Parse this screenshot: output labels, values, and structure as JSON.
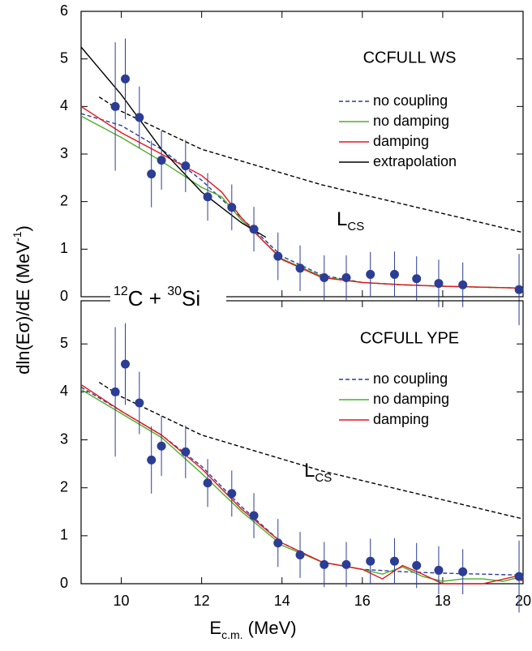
{
  "chart_data": [
    {
      "type": "line",
      "title": "CCFULL WS",
      "ylabel": {
        "main": "dln(Eσ)/dE (MeV",
        "sup": "-1",
        "end": ")"
      },
      "annotation": {
        "mass1": "12",
        "elem1": "C + ",
        "mass2": "30",
        "elem2": "Si"
      },
      "lcs": {
        "label": "L",
        "sub": "CS",
        "color": "#000000",
        "x": [
          9.45,
          10,
          11,
          12,
          13,
          14,
          15,
          16,
          17,
          18,
          19,
          20
        ],
        "values": [
          4.2,
          3.9,
          3.5,
          3.1,
          2.85,
          2.6,
          2.35,
          2.15,
          1.95,
          1.75,
          1.55,
          1.35
        ]
      },
      "series": [
        {
          "name": "no coupling",
          "color": "#2a3d9e",
          "dashed": true,
          "x": [
            9,
            10,
            11,
            12,
            13,
            14,
            15,
            16,
            17,
            18,
            19,
            20
          ],
          "values": [
            3.85,
            3.6,
            3.1,
            2.45,
            1.65,
            0.85,
            0.45,
            0.3,
            0.25,
            0.22,
            0.2,
            0.18
          ]
        },
        {
          "name": "no damping",
          "color": "#4caf2a",
          "dashed": false,
          "x": [
            9,
            10,
            11,
            12,
            12.5,
            13,
            13.5,
            14,
            15,
            16,
            17,
            18,
            20
          ],
          "values": [
            3.8,
            3.35,
            2.85,
            2.3,
            2.1,
            1.6,
            1.2,
            0.8,
            0.42,
            0.3,
            0.25,
            0.22,
            0.18
          ]
        },
        {
          "name": "damping",
          "color": "#e8141e",
          "dashed": false,
          "x": [
            9,
            10,
            11,
            12,
            12.5,
            13,
            13.5,
            14,
            15,
            16,
            17,
            18,
            20
          ],
          "values": [
            4.0,
            3.45,
            3.0,
            2.55,
            2.2,
            1.65,
            1.2,
            0.78,
            0.4,
            0.3,
            0.25,
            0.22,
            0.18
          ]
        },
        {
          "name": "extrapolation",
          "color": "#000000",
          "dashed": false,
          "x": [
            9,
            10,
            11,
            12,
            13,
            13.6
          ],
          "values": [
            5.25,
            4.25,
            3.1,
            2.2,
            1.55,
            1.25
          ]
        }
      ],
      "points": {
        "color": "#2b3d95",
        "x": [
          9.85,
          10.1,
          10.45,
          10.75,
          11.0,
          11.6,
          12.15,
          12.75,
          13.3,
          13.9,
          14.45,
          15.05,
          15.6,
          16.2,
          16.8,
          17.35,
          17.9,
          18.5,
          19.9
        ],
        "values": [
          4.0,
          4.58,
          3.77,
          2.58,
          2.87,
          2.75,
          2.1,
          1.88,
          1.42,
          0.85,
          0.6,
          0.4,
          0.4,
          0.47,
          0.47,
          0.38,
          0.28,
          0.25,
          0.15
        ],
        "errors": [
          1.35,
          0.85,
          0.65,
          0.7,
          0.62,
          0.55,
          0.5,
          0.48,
          0.47,
          0.5,
          0.48,
          0.47,
          0.47,
          0.47,
          0.48,
          0.47,
          0.5,
          0.47,
          0.75
        ]
      },
      "xlim": [
        9,
        20
      ],
      "ylim": [
        0,
        6
      ],
      "yticks": [
        0,
        1,
        2,
        3,
        4,
        5,
        6
      ]
    },
    {
      "type": "line",
      "title": "CCFULL YPE",
      "xlabel": {
        "main": "E",
        "sub": "c.m.",
        "end": " (MeV)"
      },
      "lcs": {
        "label": "L",
        "sub": "CS",
        "color": "#000000",
        "x": [
          9.45,
          10,
          11,
          12,
          13,
          14,
          15,
          16,
          17,
          18,
          19,
          20
        ],
        "values": [
          4.2,
          3.9,
          3.5,
          3.1,
          2.85,
          2.6,
          2.35,
          2.15,
          1.95,
          1.75,
          1.55,
          1.35
        ]
      },
      "series": [
        {
          "name": "no coupling",
          "color": "#2a3d9e",
          "dashed": true,
          "x": [
            9,
            10,
            11,
            12,
            13,
            14,
            15,
            16,
            17,
            18,
            19,
            20
          ],
          "values": [
            4.1,
            3.6,
            3.1,
            2.45,
            1.6,
            0.85,
            0.45,
            0.3,
            0.25,
            0.22,
            0.2,
            0.18
          ]
        },
        {
          "name": "no damping",
          "color": "#4caf2a",
          "dashed": false,
          "x": [
            9,
            10,
            11,
            12,
            13,
            14,
            15,
            16,
            16.5,
            17,
            17.5,
            18,
            18.5,
            19,
            19.5,
            20
          ],
          "values": [
            4.05,
            3.55,
            3.05,
            2.3,
            1.5,
            0.8,
            0.45,
            0.3,
            0.2,
            0.35,
            0.15,
            0.05,
            0.1,
            0.1,
            0.05,
            0.15
          ]
        },
        {
          "name": "damping",
          "color": "#e8141e",
          "dashed": false,
          "x": [
            9,
            10,
            11,
            12,
            13,
            14,
            15,
            16,
            16.5,
            17,
            17.5,
            18,
            19,
            19.8,
            20
          ],
          "values": [
            4.15,
            3.6,
            3.1,
            2.4,
            1.55,
            0.85,
            0.45,
            0.3,
            0.1,
            0.38,
            0.2,
            0.0,
            0.0,
            0.15,
            0.05
          ]
        }
      ],
      "points": {
        "color": "#2b3d95",
        "x": [
          9.85,
          10.1,
          10.45,
          10.75,
          11.0,
          11.6,
          12.15,
          12.75,
          13.3,
          13.9,
          14.45,
          15.05,
          15.6,
          16.2,
          16.8,
          17.35,
          17.9,
          18.5,
          19.9
        ],
        "values": [
          4.0,
          4.58,
          3.77,
          2.58,
          2.87,
          2.75,
          2.1,
          1.88,
          1.42,
          0.85,
          0.6,
          0.4,
          0.4,
          0.47,
          0.47,
          0.38,
          0.28,
          0.25,
          0.15
        ],
        "errors": [
          1.35,
          0.85,
          0.65,
          0.7,
          0.62,
          0.55,
          0.5,
          0.48,
          0.47,
          0.5,
          0.48,
          0.47,
          0.47,
          0.47,
          0.48,
          0.47,
          0.5,
          0.47,
          0.75
        ]
      },
      "xlim": [
        9,
        20
      ],
      "xticks": [
        10,
        12,
        14,
        16,
        18,
        20
      ],
      "ylim": [
        0,
        5.9
      ],
      "yticks": [
        0,
        1,
        2,
        3,
        4,
        5
      ]
    }
  ]
}
